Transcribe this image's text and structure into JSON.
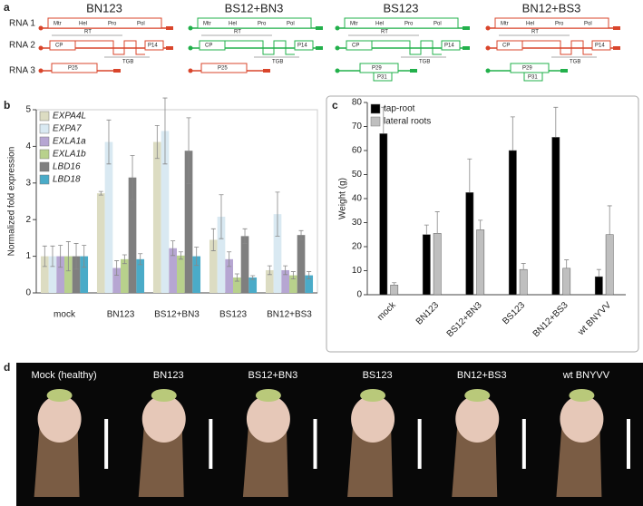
{
  "panel_letters": [
    "a",
    "b",
    "c",
    "d"
  ],
  "genome_diagram": {
    "rows": [
      "RNA 1",
      "RNA 2",
      "RNA 3"
    ],
    "rna1_genes": [
      "Mtr",
      "Hel",
      "Pro",
      "Pol"
    ],
    "rna2_genes": [
      "RT",
      "CP",
      "P14",
      "TGB"
    ],
    "columns": [
      {
        "name": "BN123",
        "colors": [
          "#d9452b",
          "#d9452b",
          "#d9452b"
        ],
        "rna3_genes": [
          "P25"
        ]
      },
      {
        "name": "BS12+BN3",
        "colors": [
          "#22b04b",
          "#22b04b",
          "#d9452b"
        ],
        "rna3_genes": [
          "P25"
        ]
      },
      {
        "name": "BS123",
        "colors": [
          "#22b04b",
          "#22b04b",
          "#22b04b"
        ],
        "rna3_genes": [
          "P29",
          "P31"
        ]
      },
      {
        "name": "BN12+BS3",
        "colors": [
          "#d9452b",
          "#d9452b",
          "#22b04b"
        ],
        "rna3_genes": [
          "P29",
          "P31"
        ]
      }
    ]
  },
  "chart_data": [
    {
      "type": "bar",
      "y_label": "Normalized fold expression",
      "categories": [
        "mock",
        "BN123",
        "BS12+BN3",
        "BS123",
        "BN12+BS3"
      ],
      "ylim": [
        0,
        5
      ],
      "yticks": [
        0,
        1,
        2,
        3,
        4,
        5
      ],
      "legend": "upper left",
      "legend_italic": true,
      "series": [
        {
          "name": "EXPA4L",
          "color": "#dcdcc2",
          "values": [
            1.0,
            2.72,
            4.12,
            1.45,
            0.62
          ],
          "errors": [
            0.28,
            0.05,
            0.45,
            0.3,
            0.12
          ]
        },
        {
          "name": "EXPA7",
          "color": "#d9e9f2",
          "values": [
            1.0,
            4.12,
            4.42,
            2.08,
            2.15
          ],
          "errors": [
            0.28,
            0.6,
            0.9,
            0.6,
            0.6
          ]
        },
        {
          "name": "EXLA1a",
          "color": "#b6a6d2",
          "values": [
            1.0,
            0.68,
            1.22,
            0.92,
            0.62
          ],
          "errors": [
            0.3,
            0.2,
            0.2,
            0.2,
            0.12
          ]
        },
        {
          "name": "EXLA1b",
          "color": "#b8d18c",
          "values": [
            1.0,
            0.92,
            1.02,
            0.42,
            0.48
          ],
          "errors": [
            0.4,
            0.12,
            0.1,
            0.1,
            0.1
          ]
        },
        {
          "name": "LBD16",
          "color": "#7f7f7f",
          "values": [
            1.0,
            3.15,
            3.88,
            1.55,
            1.58
          ],
          "errors": [
            0.35,
            0.6,
            0.9,
            0.2,
            0.12
          ]
        },
        {
          "name": "LBD18",
          "color": "#4aabc8",
          "values": [
            1.0,
            0.92,
            1.0,
            0.42,
            0.48
          ],
          "errors": [
            0.3,
            0.15,
            0.25,
            0.05,
            0.1
          ]
        }
      ]
    },
    {
      "type": "bar",
      "y_label": "Weight (g)",
      "categories": [
        "mock",
        "BN123",
        "BS12+BN3",
        "BS123",
        "BN12+BS3",
        "wt BNYVV"
      ],
      "ylim": [
        0,
        80
      ],
      "yticks": [
        0,
        10,
        20,
        30,
        40,
        50,
        60,
        70,
        80
      ],
      "legend": "upper left",
      "legend_italic": false,
      "series": [
        {
          "name": "tap-root",
          "color": "#000000",
          "values": [
            67,
            25,
            42.5,
            60,
            65.5,
            7.5
          ],
          "errors": [
            11,
            4,
            14,
            14,
            12.5,
            3
          ]
        },
        {
          "name": "lateral roots",
          "color": "#bfbfbf",
          "values": [
            4,
            25.5,
            27,
            10.5,
            11,
            25
          ],
          "errors": [
            1,
            9,
            4,
            2.5,
            3.5,
            12
          ]
        }
      ]
    }
  ],
  "photos": [
    "Mock (healthy)",
    "BN123",
    "BS12+BN3",
    "BS123",
    "BN12+BS3",
    "wt BNYVV"
  ]
}
